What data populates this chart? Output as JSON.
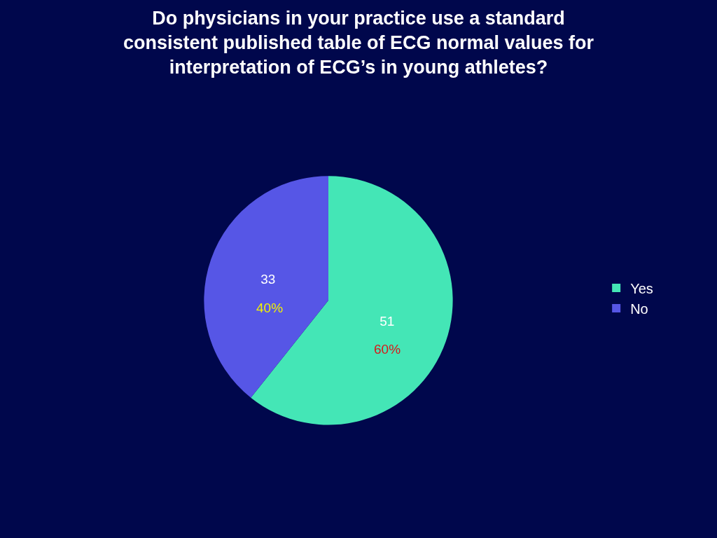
{
  "chart_data": {
    "type": "pie",
    "title": "Do physicians in your practice use a standard consistent published table of ECG normal values for interpretation of ECG’s in young athletes?",
    "categories": [
      "Yes",
      "No"
    ],
    "values": [
      51,
      33
    ],
    "colors": [
      "#44e6b6",
      "#5656e6"
    ],
    "data_labels": true,
    "annotations": [
      "60%",
      "40%"
    ],
    "legend": "right"
  }
}
